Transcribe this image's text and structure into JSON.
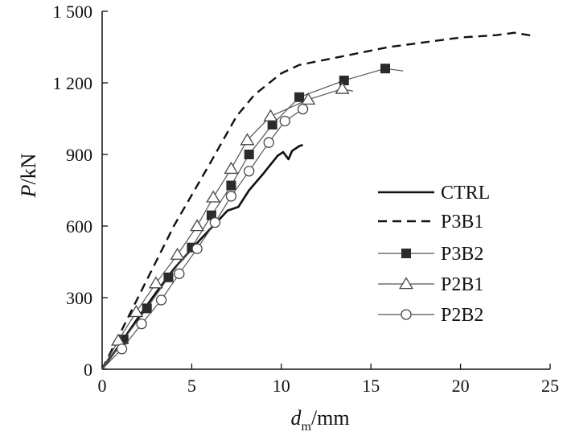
{
  "chart_data": {
    "type": "line",
    "title": "",
    "xlabel": {
      "main": "d",
      "sub": "m",
      "unit": "/mm"
    },
    "ylabel": {
      "main": "P",
      "unit": "/kN"
    },
    "xlim": [
      0,
      25
    ],
    "ylim": [
      0,
      1500
    ],
    "x_ticks": [
      0,
      5,
      10,
      15,
      20,
      25
    ],
    "y_ticks": [
      0,
      300,
      600,
      900,
      1200,
      1500
    ],
    "x_tick_labels": [
      "0",
      "5",
      "10",
      "15",
      "20",
      "25"
    ],
    "y_tick_labels": [
      "0",
      "300",
      "600",
      "900",
      "1 200",
      "1 500"
    ],
    "grid": false,
    "legend_position": "right",
    "series": [
      {
        "name": "CTRL",
        "line_style": "solid",
        "marker": "none",
        "color": "#000000",
        "x": [
          0,
          1,
          2,
          3,
          4,
          5,
          6,
          7,
          7.6,
          8.2,
          9,
          9.8,
          10.1,
          10.4,
          10.6,
          11,
          11.2
        ],
        "y": [
          0,
          105,
          215,
          320,
          420,
          505,
          585,
          665,
          680,
          750,
          820,
          895,
          910,
          880,
          915,
          935,
          940
        ]
      },
      {
        "name": "P3B1",
        "line_style": "dashed",
        "marker": "none",
        "color": "#000000",
        "x": [
          0,
          2,
          4,
          6,
          7.5,
          8.5,
          10,
          11,
          12,
          14,
          16,
          18,
          20,
          22,
          23,
          24.2
        ],
        "y": [
          0,
          300,
          600,
          860,
          1060,
          1150,
          1240,
          1275,
          1290,
          1320,
          1350,
          1370,
          1390,
          1400,
          1410,
          1395
        ]
      },
      {
        "name": "P3B2",
        "line_style": "solid",
        "marker": "filled-square",
        "color": "#555555",
        "x": [
          0,
          1.2,
          2.5,
          3.7,
          5,
          6.1,
          7.2,
          8.2,
          9.5,
          11,
          13.5,
          15.8,
          16.8
        ],
        "y": [
          0,
          125,
          255,
          385,
          510,
          645,
          770,
          900,
          1025,
          1140,
          1210,
          1260,
          1250
        ],
        "marker_x": [
          1.2,
          2.5,
          3.7,
          5,
          6.1,
          7.2,
          8.2,
          9.5,
          11,
          13.5,
          15.8
        ]
      },
      {
        "name": "P2B1",
        "line_style": "solid",
        "marker": "open-triangle",
        "color": "#555555",
        "x": [
          0,
          0.9,
          1.9,
          3,
          4.2,
          5.3,
          6.2,
          7.2,
          8.1,
          9.4,
          11.5,
          13.4,
          14
        ],
        "y": [
          0,
          120,
          240,
          360,
          480,
          600,
          720,
          840,
          960,
          1060,
          1130,
          1175,
          1165
        ],
        "marker_x": [
          0.9,
          1.9,
          3,
          4.2,
          5.3,
          6.2,
          7.2,
          8.1,
          9.4,
          11.5,
          13.4
        ]
      },
      {
        "name": "P2B2",
        "line_style": "solid",
        "marker": "open-circle",
        "color": "#555555",
        "x": [
          0,
          1.1,
          2.2,
          3.3,
          4.3,
          5.3,
          6.3,
          7.2,
          8.2,
          9.3,
          10.2,
          11.2,
          11.5
        ],
        "y": [
          0,
          85,
          190,
          290,
          400,
          505,
          615,
          725,
          830,
          950,
          1040,
          1090,
          1095
        ],
        "marker_x": [
          1.1,
          2.2,
          3.3,
          4.3,
          5.3,
          6.3,
          7.2,
          8.2,
          9.3,
          10.2,
          11.2
        ]
      }
    ]
  }
}
